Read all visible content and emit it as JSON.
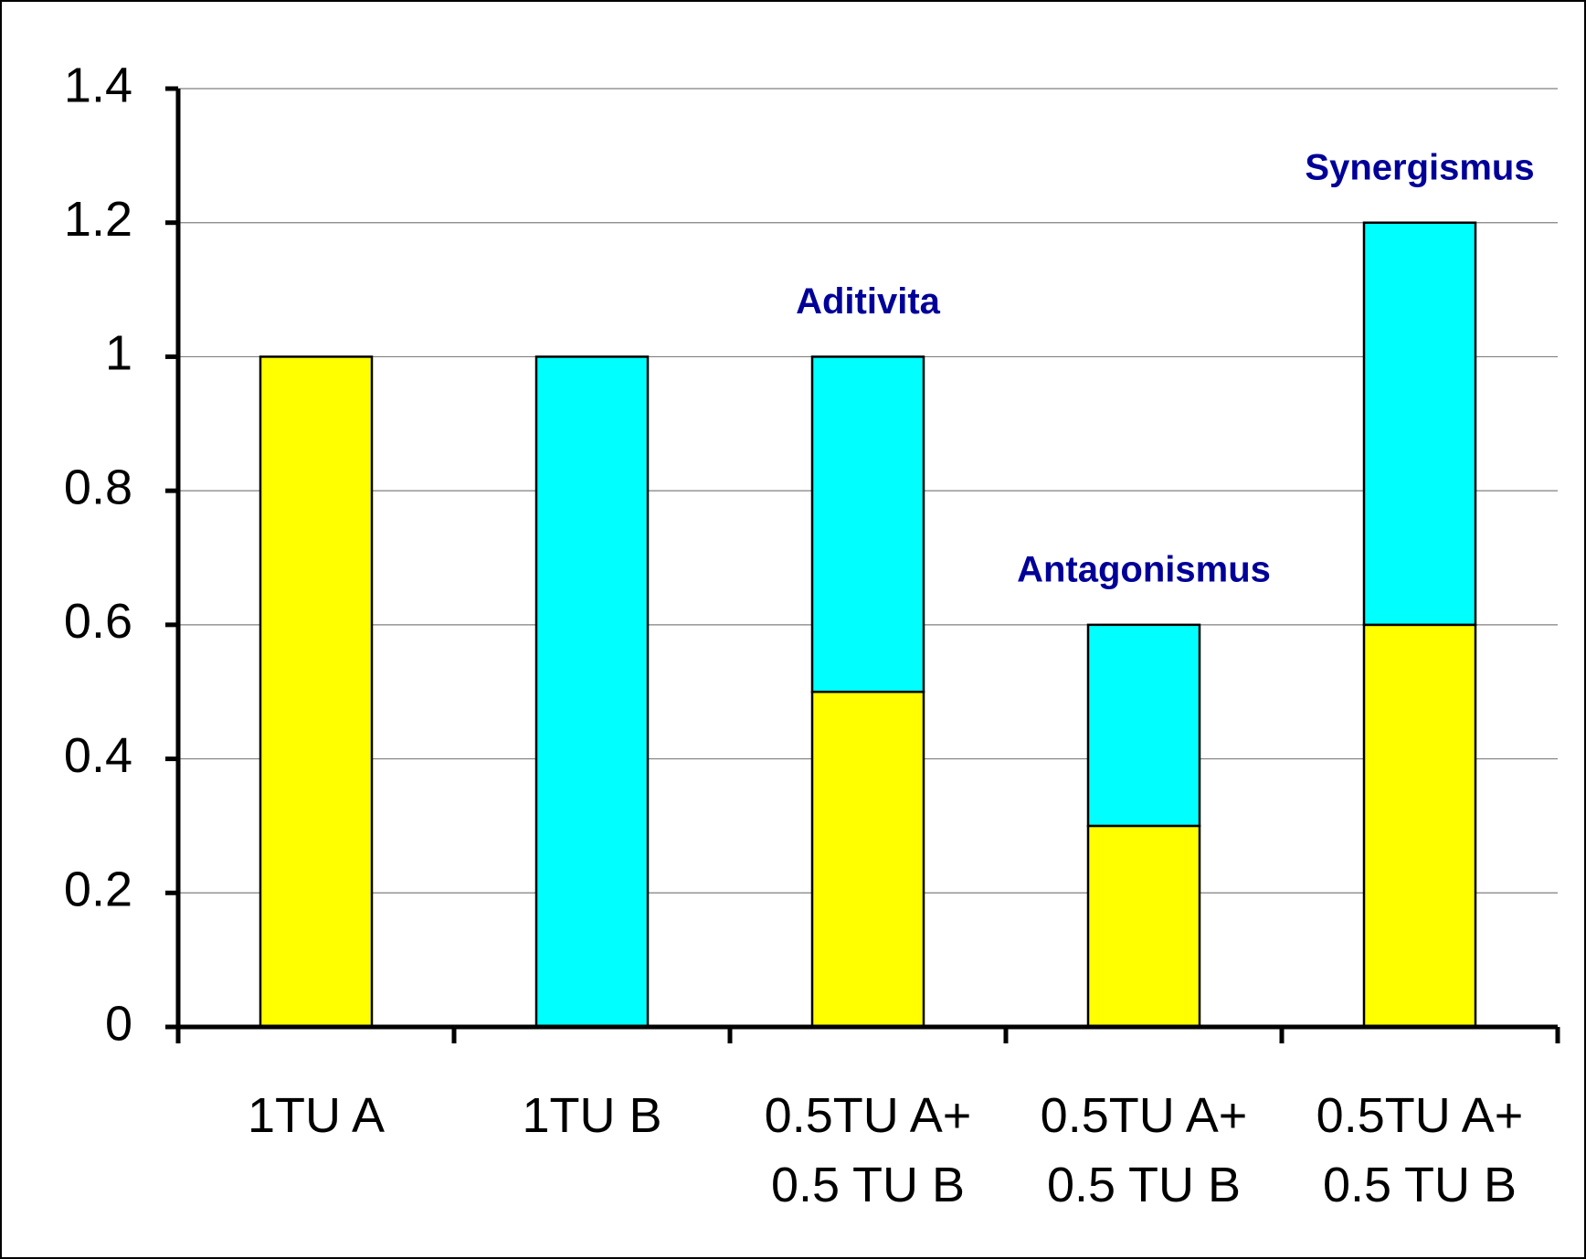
{
  "chart_data": {
    "type": "stacked_bar",
    "categories": [
      "1TU A",
      "1TU B",
      "0.5TU A+\n0.5 TU B",
      "0.5TU A+\n0.5 TU B",
      "0.5TU A+\n0.5 TU B"
    ],
    "series": [
      {
        "color": "#ffff00",
        "values": [
          1,
          0,
          0.5,
          0.3,
          0.6
        ]
      },
      {
        "color": "#00ffff",
        "values": [
          0,
          1,
          0.5,
          0.3,
          0.6
        ]
      }
    ],
    "annotations": [
      null,
      null,
      "Aditivita",
      "Antagonismus",
      "Synergismus"
    ],
    "annotation_color": "#000099",
    "ylim": [
      0,
      1.4
    ],
    "yticks": [
      0,
      0.2,
      0.4,
      0.6,
      0.8,
      1,
      1.2,
      1.4
    ],
    "grid": true
  }
}
